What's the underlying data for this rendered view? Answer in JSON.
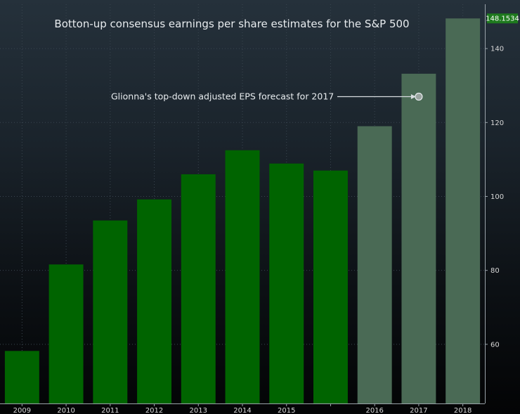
{
  "chart_data": {
    "type": "bar",
    "title": "Botton-up consensus earnings per share estimates for the S&P 500",
    "categories": [
      "2009",
      "2010",
      "2011",
      "2012",
      "2013",
      "2014",
      "2015",
      "",
      "2016",
      "2017",
      "2018"
    ],
    "values": [
      58.2,
      81.6,
      93.5,
      99.2,
      106.0,
      112.5,
      108.9,
      107.0,
      119.0,
      133.2,
      148.1534
    ],
    "estimate": [
      false,
      false,
      false,
      false,
      false,
      false,
      false,
      false,
      true,
      true,
      true
    ],
    "ylim": [
      44,
      152
    ],
    "yticks": [
      60,
      80,
      100,
      120,
      140
    ],
    "y_axis_side": "right",
    "last_value_label": "148.1534",
    "annotation": {
      "text": "Glionna's top-down adjusted EPS forecast for 2017",
      "category": "2017",
      "value": 127
    },
    "colors": {
      "actual": "#006400",
      "estimate": "#4a6a55",
      "last_value_badge": "#1e7a1e"
    },
    "grid": true
  }
}
